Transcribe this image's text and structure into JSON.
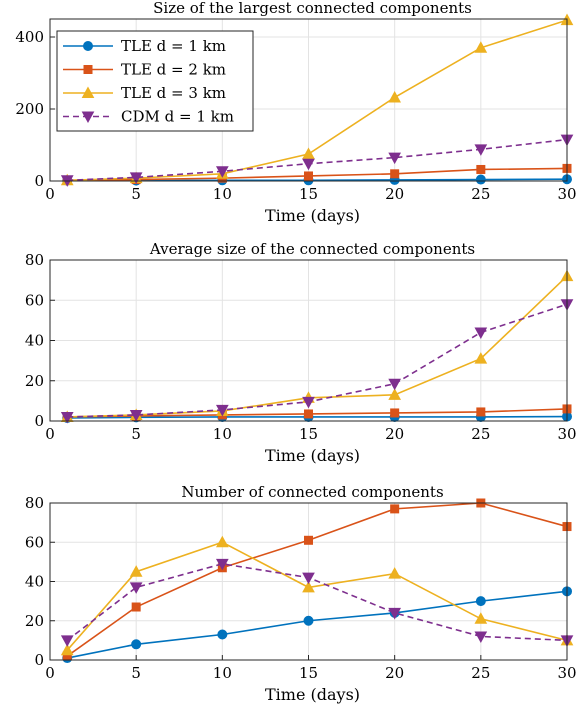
{
  "chart_data": [
    {
      "type": "line",
      "title": "Size of the largest connected components",
      "xlabel": "Time (days)",
      "ylabel": "",
      "xlim": [
        0,
        30
      ],
      "ylim": [
        0,
        450
      ],
      "xticks": [
        0,
        5,
        10,
        15,
        20,
        25,
        30
      ],
      "yticks": [
        0,
        200,
        400
      ],
      "grid": true,
      "legend": "top-left",
      "x": [
        1,
        5,
        10,
        15,
        20,
        25,
        30
      ],
      "series": [
        {
          "name": "TLE d = 1 km",
          "color": "#0072BD",
          "marker": "circle",
          "dash": false,
          "values": [
            1,
            1,
            2,
            2,
            3,
            4,
            5
          ]
        },
        {
          "name": "TLE d = 2 km",
          "color": "#D95319",
          "marker": "square",
          "dash": false,
          "values": [
            2,
            4,
            8,
            14,
            20,
            32,
            35
          ]
        },
        {
          "name": "TLE d = 3 km",
          "color": "#EDB120",
          "marker": "triangle-up",
          "dash": false,
          "values": [
            2,
            8,
            20,
            75,
            232,
            370,
            447
          ]
        },
        {
          "name": "CDM d = 1 km",
          "color": "#7E2F8E",
          "marker": "triangle-down",
          "dash": true,
          "values": [
            2,
            10,
            27,
            48,
            65,
            88,
            115
          ]
        }
      ]
    },
    {
      "type": "line",
      "title": "Average size of the connected components",
      "xlabel": "Time (days)",
      "ylabel": "",
      "xlim": [
        0,
        30
      ],
      "ylim": [
        0,
        80
      ],
      "xticks": [
        0,
        5,
        10,
        15,
        20,
        25,
        30
      ],
      "yticks": [
        0,
        20,
        40,
        60,
        80
      ],
      "grid": true,
      "x": [
        1,
        5,
        10,
        15,
        20,
        25,
        30
      ],
      "series": [
        {
          "color": "#0072BD",
          "marker": "circle",
          "dash": false,
          "values": [
            1.5,
            1.8,
            2,
            2,
            2,
            2,
            2.2
          ]
        },
        {
          "color": "#D95319",
          "marker": "square",
          "dash": false,
          "values": [
            2,
            2.5,
            3,
            3.5,
            4,
            4.5,
            6
          ]
        },
        {
          "color": "#EDB120",
          "marker": "triangle-up",
          "dash": false,
          "values": [
            2,
            3,
            5,
            11.5,
            13,
            31,
            72
          ]
        },
        {
          "color": "#7E2F8E",
          "marker": "triangle-down",
          "dash": true,
          "values": [
            2,
            3,
            5.5,
            9.5,
            18.5,
            44,
            58
          ]
        }
      ]
    },
    {
      "type": "line",
      "title": "Number of connected components",
      "xlabel": "Time (days)",
      "ylabel": "",
      "xlim": [
        0,
        30
      ],
      "ylim": [
        0,
        80
      ],
      "xticks": [
        0,
        5,
        10,
        15,
        20,
        25,
        30
      ],
      "yticks": [
        0,
        20,
        40,
        60,
        80
      ],
      "grid": true,
      "x": [
        1,
        5,
        10,
        15,
        20,
        25,
        30
      ],
      "series": [
        {
          "color": "#0072BD",
          "marker": "circle",
          "dash": false,
          "values": [
            1,
            8,
            13,
            20,
            24,
            30,
            35
          ]
        },
        {
          "color": "#D95319",
          "marker": "square",
          "dash": false,
          "values": [
            2,
            27,
            47,
            61,
            77,
            80,
            68
          ]
        },
        {
          "color": "#EDB120",
          "marker": "triangle-up",
          "dash": false,
          "values": [
            5,
            45,
            60,
            37,
            44,
            21,
            10
          ]
        },
        {
          "color": "#7E2F8E",
          "marker": "triangle-down",
          "dash": true,
          "values": [
            10,
            37,
            49,
            42,
            24,
            12,
            10
          ]
        }
      ]
    }
  ]
}
